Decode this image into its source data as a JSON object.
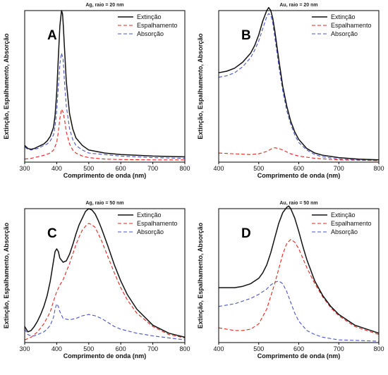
{
  "style": {
    "series_colors": [
      "#111111",
      "#e8251c",
      "#4a53c8"
    ],
    "series_dash": [
      "",
      "5,3",
      "5,3"
    ]
  },
  "chart_data": [
    {
      "type": "line",
      "panel_letter": "A",
      "title": "Ag, raio = 20 nm",
      "xlabel": "Comprimento de onda (nm)",
      "ylabel": "Extinção, Espalhamento, Absorção",
      "xlim": [
        300,
        800
      ],
      "ylim": [
        0,
        1
      ],
      "xticks": [
        300,
        400,
        500,
        600,
        700,
        800
      ],
      "legend_position": "top-right",
      "series": [
        {
          "name": "Extinção",
          "x": [
            300,
            310,
            320,
            330,
            340,
            350,
            360,
            370,
            380,
            390,
            395,
            400,
            405,
            410,
            415,
            418,
            420,
            425,
            430,
            440,
            450,
            460,
            480,
            500,
            550,
            600,
            650,
            700,
            800
          ],
          "y": [
            0.11,
            0.09,
            0.085,
            0.09,
            0.1,
            0.11,
            0.12,
            0.14,
            0.17,
            0.23,
            0.31,
            0.46,
            0.69,
            0.9,
            1.0,
            0.98,
            0.92,
            0.72,
            0.53,
            0.32,
            0.22,
            0.16,
            0.11,
            0.08,
            0.06,
            0.05,
            0.045,
            0.04,
            0.035
          ]
        },
        {
          "name": "Espalhamento",
          "x": [
            300,
            320,
            340,
            360,
            380,
            390,
            400,
            405,
            410,
            415,
            420,
            425,
            430,
            440,
            450,
            460,
            480,
            500,
            550,
            600,
            700,
            800
          ],
          "y": [
            0.02,
            0.025,
            0.035,
            0.045,
            0.06,
            0.08,
            0.13,
            0.2,
            0.29,
            0.35,
            0.33,
            0.27,
            0.2,
            0.12,
            0.08,
            0.06,
            0.04,
            0.03,
            0.02,
            0.017,
            0.015,
            0.015
          ]
        },
        {
          "name": "Absorção",
          "x": [
            300,
            310,
            320,
            330,
            340,
            350,
            360,
            370,
            380,
            390,
            395,
            400,
            405,
            410,
            415,
            420,
            425,
            430,
            440,
            450,
            460,
            480,
            500,
            550,
            600,
            650,
            700,
            800
          ],
          "y": [
            0.1,
            0.085,
            0.08,
            0.085,
            0.09,
            0.1,
            0.11,
            0.12,
            0.14,
            0.18,
            0.24,
            0.34,
            0.5,
            0.65,
            0.72,
            0.68,
            0.5,
            0.37,
            0.22,
            0.15,
            0.11,
            0.08,
            0.06,
            0.05,
            0.04,
            0.035,
            0.03,
            0.025
          ]
        }
      ]
    },
    {
      "type": "line",
      "panel_letter": "B",
      "title": "Au, raio = 20 nm",
      "xlabel": "Comprimento de onda (nm)",
      "ylabel": "Extinção, Espalhamento, Absorção",
      "xlim": [
        400,
        800
      ],
      "ylim": [
        0,
        1
      ],
      "xticks": [
        400,
        500,
        600,
        700,
        800
      ],
      "legend_position": "top-right",
      "series": [
        {
          "name": "Extinção",
          "x": [
            400,
            420,
            440,
            460,
            480,
            490,
            500,
            510,
            520,
            525,
            530,
            535,
            540,
            550,
            560,
            570,
            580,
            590,
            600,
            620,
            640,
            660,
            700,
            750,
            800
          ],
          "y": [
            0.59,
            0.6,
            0.62,
            0.66,
            0.72,
            0.77,
            0.84,
            0.93,
            1.0,
            1.02,
            1.0,
            0.95,
            0.87,
            0.68,
            0.5,
            0.37,
            0.27,
            0.2,
            0.15,
            0.09,
            0.06,
            0.045,
            0.03,
            0.02,
            0.015
          ]
        },
        {
          "name": "Espalhamento",
          "x": [
            400,
            440,
            480,
            500,
            520,
            530,
            540,
            550,
            560,
            580,
            600,
            640,
            700,
            800
          ],
          "y": [
            0.06,
            0.055,
            0.05,
            0.055,
            0.07,
            0.085,
            0.095,
            0.09,
            0.08,
            0.055,
            0.04,
            0.025,
            0.015,
            0.01
          ]
        },
        {
          "name": "Absorção",
          "x": [
            400,
            420,
            440,
            460,
            480,
            490,
            500,
            510,
            520,
            525,
            530,
            535,
            540,
            550,
            560,
            570,
            580,
            590,
            600,
            620,
            640,
            660,
            700,
            750,
            800
          ],
          "y": [
            0.56,
            0.57,
            0.59,
            0.63,
            0.69,
            0.74,
            0.8,
            0.88,
            0.96,
            0.98,
            0.97,
            0.92,
            0.83,
            0.64,
            0.47,
            0.34,
            0.25,
            0.18,
            0.13,
            0.08,
            0.05,
            0.035,
            0.02,
            0.015,
            0.01
          ]
        }
      ]
    },
    {
      "type": "line",
      "panel_letter": "C",
      "title": "Ag, raio = 50 nm",
      "xlabel": "Comprimento de onda (nm)",
      "ylabel": "Extinção, Espalhamento, Absorção",
      "xlim": [
        300,
        800
      ],
      "ylim": [
        0,
        1
      ],
      "xticks": [
        300,
        400,
        500,
        600,
        700,
        800
      ],
      "legend_position": "top-right",
      "series": [
        {
          "name": "Extinção",
          "x": [
            300,
            310,
            320,
            330,
            340,
            350,
            360,
            370,
            380,
            390,
            395,
            400,
            405,
            410,
            420,
            430,
            440,
            450,
            460,
            470,
            480,
            490,
            500,
            510,
            520,
            530,
            540,
            560,
            580,
            600,
            620,
            650,
            700,
            750,
            800
          ],
          "y": [
            0.12,
            0.08,
            0.09,
            0.12,
            0.16,
            0.21,
            0.27,
            0.35,
            0.46,
            0.61,
            0.68,
            0.7,
            0.68,
            0.63,
            0.6,
            0.61,
            0.66,
            0.73,
            0.81,
            0.88,
            0.93,
            0.98,
            1.0,
            0.99,
            0.96,
            0.91,
            0.85,
            0.72,
            0.58,
            0.46,
            0.36,
            0.25,
            0.13,
            0.07,
            0.04
          ]
        },
        {
          "name": "Espalhamento",
          "x": [
            300,
            320,
            340,
            360,
            380,
            390,
            400,
            410,
            420,
            430,
            440,
            450,
            460,
            470,
            480,
            490,
            500,
            510,
            520,
            530,
            540,
            560,
            580,
            600,
            620,
            650,
            700,
            750,
            800
          ],
          "y": [
            0.02,
            0.04,
            0.08,
            0.14,
            0.23,
            0.31,
            0.38,
            0.43,
            0.47,
            0.53,
            0.59,
            0.66,
            0.73,
            0.79,
            0.84,
            0.87,
            0.89,
            0.88,
            0.86,
            0.81,
            0.76,
            0.64,
            0.52,
            0.41,
            0.32,
            0.22,
            0.12,
            0.06,
            0.035
          ]
        },
        {
          "name": "Absorção",
          "x": [
            300,
            310,
            320,
            330,
            340,
            350,
            360,
            370,
            380,
            390,
            395,
            400,
            405,
            410,
            420,
            440,
            460,
            480,
            500,
            520,
            540,
            560,
            580,
            600,
            650,
            700,
            750,
            800
          ],
          "y": [
            0.1,
            0.06,
            0.05,
            0.05,
            0.06,
            0.07,
            0.08,
            0.1,
            0.13,
            0.19,
            0.25,
            0.29,
            0.27,
            0.23,
            0.18,
            0.17,
            0.18,
            0.2,
            0.21,
            0.2,
            0.18,
            0.15,
            0.12,
            0.1,
            0.07,
            0.05,
            0.035,
            0.02
          ]
        }
      ]
    },
    {
      "type": "line",
      "panel_letter": "D",
      "title": "Au, raio = 50 nm",
      "xlabel": "Comprimento de onda (nm)",
      "ylabel": "Extinção, Espalhamento, Absorção",
      "xlim": [
        400,
        800
      ],
      "ylim": [
        0,
        1
      ],
      "xticks": [
        400,
        500,
        600,
        700,
        800
      ],
      "legend_position": "top-right",
      "series": [
        {
          "name": "Extinção",
          "x": [
            400,
            420,
            440,
            460,
            480,
            500,
            510,
            520,
            530,
            540,
            550,
            560,
            570,
            575,
            580,
            590,
            600,
            610,
            620,
            640,
            660,
            680,
            700,
            740,
            800
          ],
          "y": [
            0.41,
            0.41,
            0.41,
            0.42,
            0.44,
            0.48,
            0.52,
            0.58,
            0.67,
            0.78,
            0.89,
            0.97,
            1.01,
            1.02,
            1.0,
            0.93,
            0.83,
            0.72,
            0.62,
            0.46,
            0.35,
            0.27,
            0.21,
            0.13,
            0.07
          ]
        },
        {
          "name": "Espalhamento",
          "x": [
            400,
            420,
            440,
            460,
            480,
            500,
            520,
            540,
            550,
            560,
            570,
            580,
            590,
            600,
            610,
            620,
            640,
            660,
            680,
            700,
            740,
            800
          ],
          "y": [
            0.11,
            0.1,
            0.09,
            0.09,
            0.1,
            0.14,
            0.25,
            0.44,
            0.55,
            0.66,
            0.74,
            0.77,
            0.75,
            0.7,
            0.63,
            0.56,
            0.44,
            0.34,
            0.26,
            0.2,
            0.12,
            0.06
          ]
        },
        {
          "name": "Absorção",
          "x": [
            400,
            420,
            440,
            460,
            480,
            500,
            520,
            530,
            540,
            550,
            560,
            570,
            580,
            590,
            600,
            620,
            640,
            660,
            700,
            750,
            800
          ],
          "y": [
            0.27,
            0.28,
            0.29,
            0.31,
            0.33,
            0.36,
            0.4,
            0.43,
            0.45,
            0.46,
            0.44,
            0.38,
            0.3,
            0.22,
            0.16,
            0.09,
            0.06,
            0.04,
            0.02,
            0.015,
            0.01
          ]
        }
      ]
    }
  ]
}
